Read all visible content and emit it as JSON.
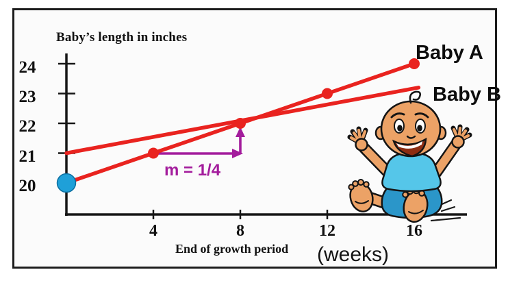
{
  "figure": {
    "title": "Baby’s length in inches",
    "x_axis_title": "End of growth period",
    "x_axis_unit_label": "(weeks)",
    "slope_label": "m = 1/4",
    "series_a_label": "Baby A",
    "series_b_label": "Baby B"
  },
  "chart_data": {
    "type": "line",
    "title": "Baby’s length in inches",
    "xlabel": "End of growth period (weeks)",
    "ylabel": "Baby’s length in inches",
    "x_ticks": [
      4,
      8,
      12,
      16
    ],
    "y_ticks": [
      24,
      23,
      22,
      21,
      20
    ],
    "xlim": [
      0,
      18.5
    ],
    "ylim": [
      19.4,
      24.9
    ],
    "grid": false,
    "legend": "inline labels at right ends of lines",
    "series": [
      {
        "name": "Baby A",
        "x": [
          0,
          4,
          8,
          12,
          16
        ],
        "values": [
          20,
          21,
          22,
          23,
          24
        ],
        "color": "#e9231f",
        "marker": "circle",
        "marker_color": "#e9231f",
        "first_marker_color": "#1fa0d8",
        "slope": 0.25
      },
      {
        "name": "Baby B",
        "x": [
          0,
          16.2
        ],
        "values": [
          21,
          23.2
        ],
        "color": "#e9231f",
        "marker": "none",
        "slope": 0.14
      }
    ],
    "annotation": {
      "text": "m = 1/4",
      "color": "#a31c9c",
      "run_from": {
        "x": 4,
        "value": 21
      },
      "rise_to": {
        "x": 8,
        "value": 22
      }
    },
    "start_point": {
      "x": 0,
      "value": 20,
      "color": "#1fa0d8"
    }
  },
  "decor": {
    "cartoon": "smiling baby sitting on the x-axis near week 14",
    "skin_color": "#eca266",
    "shirt_color": "#55c6e9",
    "shorts_color": "#2b96c9"
  }
}
